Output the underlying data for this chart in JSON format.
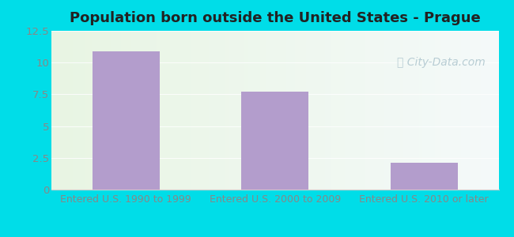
{
  "title": "Population born outside the United States - Prague",
  "categories": [
    "Entered U.S. 1990 to 1999",
    "Entered U.S. 2000 to 2009",
    "Entered U.S. 2010 or later"
  ],
  "values": [
    10.9,
    7.7,
    2.1
  ],
  "bar_color": "#b39dcc",
  "bar_width": 0.45,
  "ylim": [
    0,
    12.5
  ],
  "yticks": [
    0,
    2.5,
    5.0,
    7.5,
    10.0,
    12.5
  ],
  "title_fontsize": 13,
  "tick_label_fontsize": 9.5,
  "xlabel_fontsize": 9,
  "xtick_color": "#888888",
  "ytick_color": "#888888",
  "background_outer": "#00dde8",
  "watermark_text": "Ⓜ City-Data.com",
  "watermark_color": "#b8cdd4",
  "watermark_fontsize": 10
}
